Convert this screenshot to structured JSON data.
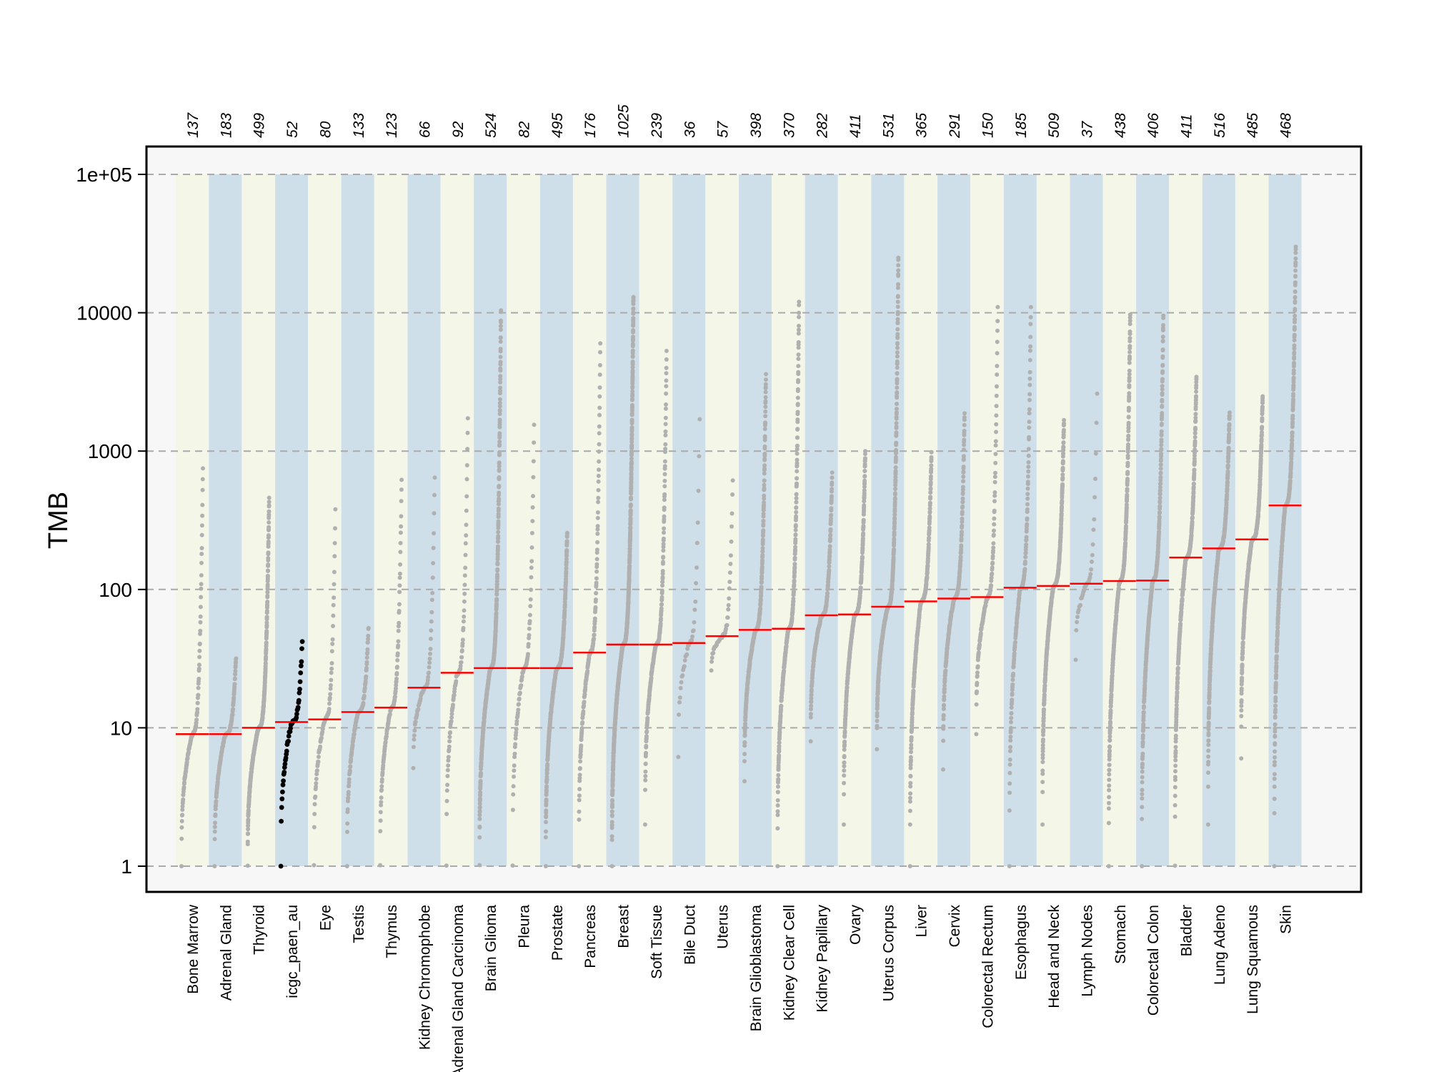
{
  "chart_data": {
    "type": "scatter",
    "ylabel": "TMB",
    "yscale": "log10",
    "ylim": [
      1,
      100000
    ],
    "yticks": [
      {
        "value": 1,
        "label": "1"
      },
      {
        "value": 10,
        "label": "10"
      },
      {
        "value": 100,
        "label": "100"
      },
      {
        "value": 1000,
        "label": "1000"
      },
      {
        "value": 10000,
        "label": "10000"
      },
      {
        "value": 100000,
        "label": "1e+05"
      }
    ],
    "grid": true,
    "band_colors": [
      "#f4f6e8",
      "#cfdfe9"
    ],
    "median_color": "#ff0000",
    "point_color": "#b0b0b0",
    "highlight_color": "#000000",
    "highlight_group": "icgc_paen_au",
    "groups": [
      {
        "name": "Bone Marrow",
        "count": "137",
        "n": 137,
        "median": 9,
        "min": 1,
        "max": 750
      },
      {
        "name": "Adrenal Gland",
        "count": "183",
        "n": 183,
        "median": 9,
        "min": 1,
        "max": 33
      },
      {
        "name": "Thyroid",
        "count": "499",
        "n": 499,
        "median": 10,
        "min": 1,
        "max": 460
      },
      {
        "name": "icgc_paen_au",
        "count": "52",
        "n": 52,
        "median": 11,
        "min": 1,
        "max": 42
      },
      {
        "name": "Eye",
        "count": "80",
        "n": 80,
        "median": 11.5,
        "min": 1,
        "max": 380
      },
      {
        "name": "Testis",
        "count": "133",
        "n": 133,
        "median": 13,
        "min": 1,
        "max": 55
      },
      {
        "name": "Thymus",
        "count": "123",
        "n": 123,
        "median": 14,
        "min": 1,
        "max": 620
      },
      {
        "name": "Kidney Chromophobe",
        "count": "66",
        "n": 66,
        "median": 19.5,
        "min": 5,
        "max": 660
      },
      {
        "name": "Adrenal Gland Carcinoma",
        "count": "92",
        "n": 92,
        "median": 25,
        "min": 1,
        "max": 1800
      },
      {
        "name": "Brain Glioma",
        "count": "524",
        "n": 524,
        "median": 27,
        "min": 1,
        "max": 10500
      },
      {
        "name": "Pleura",
        "count": "82",
        "n": 82,
        "median": 27,
        "min": 1,
        "max": 1550
      },
      {
        "name": "Prostate",
        "count": "495",
        "n": 495,
        "median": 27,
        "min": 1,
        "max": 260
      },
      {
        "name": "Pancreas",
        "count": "176",
        "n": 176,
        "median": 35,
        "min": 1,
        "max": 6000
      },
      {
        "name": "Breast",
        "count": "1025",
        "n": 1025,
        "median": 40,
        "min": 1,
        "max": 13500
      },
      {
        "name": "Soft Tissue",
        "count": "239",
        "n": 239,
        "median": 40,
        "min": 2,
        "max": 5300
      },
      {
        "name": "Bile Duct",
        "count": "36",
        "n": 36,
        "median": 41,
        "min": 6,
        "max": 1700
      },
      {
        "name": "Uterus",
        "count": "57",
        "n": 57,
        "median": 46,
        "min": 26,
        "max": 620
      },
      {
        "name": "Brain Glioblastoma",
        "count": "398",
        "n": 398,
        "median": 51,
        "min": 4,
        "max": 3600
      },
      {
        "name": "Kidney Clear Cell",
        "count": "370",
        "n": 370,
        "median": 52,
        "min": 1,
        "max": 12000
      },
      {
        "name": "Kidney Papillary",
        "count": "282",
        "n": 282,
        "median": 65,
        "min": 8,
        "max": 700
      },
      {
        "name": "Ovary",
        "count": "411",
        "n": 411,
        "median": 66,
        "min": 2,
        "max": 1000
      },
      {
        "name": "Uterus Corpus",
        "count": "531",
        "n": 531,
        "median": 75,
        "min": 7,
        "max": 25000
      },
      {
        "name": "Liver",
        "count": "365",
        "n": 365,
        "median": 82,
        "min": 1,
        "max": 1000
      },
      {
        "name": "Cervix",
        "count": "291",
        "n": 291,
        "median": 86,
        "min": 5,
        "max": 1900
      },
      {
        "name": "Colorectal Rectum",
        "count": "150",
        "n": 150,
        "median": 88,
        "min": 9,
        "max": 11000
      },
      {
        "name": "Esophagus",
        "count": "185",
        "n": 185,
        "median": 103,
        "min": 1,
        "max": 11000
      },
      {
        "name": "Head and Neck",
        "count": "509",
        "n": 509,
        "median": 106,
        "min": 2,
        "max": 1700
      },
      {
        "name": "Lymph Nodes",
        "count": "37",
        "n": 37,
        "median": 110,
        "min": 31,
        "max": 2600
      },
      {
        "name": "Stomach",
        "count": "438",
        "n": 438,
        "median": 115,
        "min": 1,
        "max": 9700
      },
      {
        "name": "Colorectal Colon",
        "count": "406",
        "n": 406,
        "median": 116,
        "min": 1,
        "max": 9600
      },
      {
        "name": "Bladder",
        "count": "411",
        "n": 411,
        "median": 170,
        "min": 1,
        "max": 3500
      },
      {
        "name": "Lung Adeno",
        "count": "516",
        "n": 516,
        "median": 198,
        "min": 2,
        "max": 1900
      },
      {
        "name": "Lung Squamous",
        "count": "485",
        "n": 485,
        "median": 230,
        "min": 6,
        "max": 2500
      },
      {
        "name": "Skin",
        "count": "468",
        "n": 468,
        "median": 405,
        "min": 1,
        "max": 30000
      }
    ]
  }
}
